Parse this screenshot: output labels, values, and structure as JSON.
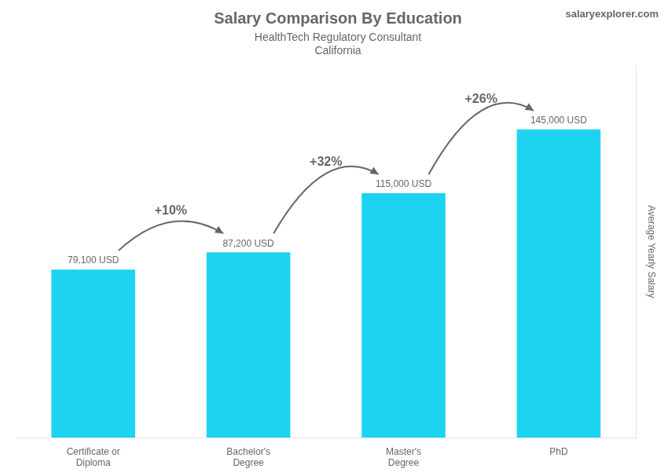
{
  "chart_data": {
    "type": "bar",
    "title": "Salary Comparison By Education",
    "subtitle": [
      "HealthTech Regulatory Consultant",
      "California"
    ],
    "ylabel": "Average Yearly Salary",
    "categories": [
      "Certificate or\nDiploma",
      "Bachelor's\nDegree",
      "Master's\nDegree",
      "PhD"
    ],
    "values": [
      79100,
      87200,
      115000,
      145000
    ],
    "value_labels": [
      "79,100 USD",
      "87,200 USD",
      "115,000 USD",
      "145,000 USD"
    ],
    "data_labels": true,
    "color": "#1dd3f0",
    "ylim": [
      0,
      175000
    ],
    "tick_labels": "x",
    "grid": false,
    "annotations": [
      {
        "text": "+10%",
        "from": "Certificate or\nDiploma",
        "to": "Bachelor's\nDegree"
      },
      {
        "text": "+32%",
        "from": "Bachelor's\nDegree",
        "to": "Master's\nDegree"
      },
      {
        "text": "+26%",
        "from": "Master's\nDegree",
        "to": "PhD"
      },
      {
        "text": "salaryexplorer.com"
      }
    ]
  }
}
